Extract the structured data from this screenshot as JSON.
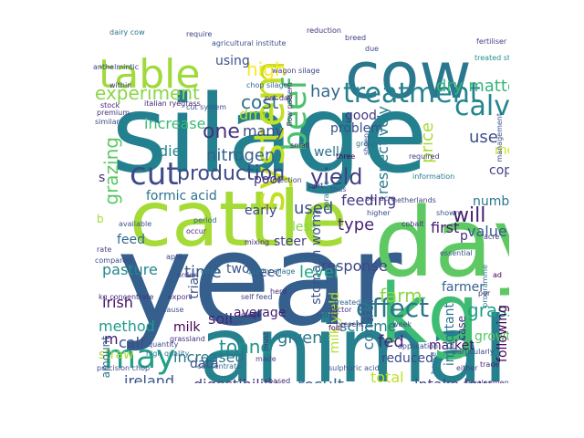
{
  "words": [
    {
      "id": "silage",
      "text": "silage",
      "color": "#23808e"
    },
    {
      "id": "year",
      "text": "year",
      "color": "#35608d"
    },
    {
      "id": "cattle",
      "text": "cattle",
      "color": "#a5db36"
    },
    {
      "id": "animal",
      "text": "animal",
      "color": "#26818e"
    },
    {
      "id": "day",
      "text": "day",
      "color": "#5ec962"
    },
    {
      "id": "kg",
      "text": "kg",
      "color": "#3fbc73"
    },
    {
      "id": "cow",
      "text": "cow",
      "color": "#2a788e"
    },
    {
      "id": "table",
      "text": "table",
      "color": "#9fda3a"
    },
    {
      "id": "system",
      "text": "system",
      "color": "#c2df23"
    },
    {
      "id": "beef",
      "text": "beef",
      "color": "#4ac16d"
    },
    {
      "id": "may",
      "text": "may",
      "color": "#1fa187"
    },
    {
      "id": "treatment",
      "text": "treatment",
      "color": "#26828e"
    },
    {
      "id": "experiment",
      "text": "experiment",
      "color": "#89d548"
    },
    {
      "id": "calves",
      "text": "calves",
      "color": "#25858e"
    },
    {
      "id": "dry_matter",
      "text": "dry matter",
      "color": "#34b679"
    },
    {
      "id": "effect",
      "text": "effect",
      "color": "#2b758e"
    },
    {
      "id": "cut",
      "text": "cut",
      "color": "#3e4a89"
    },
    {
      "id": "production",
      "text": "production",
      "color": "#3e4989"
    },
    {
      "id": "yield",
      "text": "yield",
      "color": "#424086"
    },
    {
      "id": "will",
      "text": "will",
      "color": "#481b6d"
    },
    {
      "id": "high",
      "text": "high",
      "color": "#fde725"
    },
    {
      "id": "cost",
      "text": "cost",
      "color": "#2e6e8e"
    },
    {
      "id": "grazing",
      "text": "grazing",
      "color": "#5ac864"
    },
    {
      "id": "one",
      "text": "one",
      "color": "#46327e"
    },
    {
      "id": "nitrogen",
      "text": "nitrogen",
      "color": "#33638d"
    },
    {
      "id": "increase",
      "text": "increase",
      "color": "#3aba76"
    },
    {
      "id": "diet",
      "text": "diet",
      "color": "#25838e"
    },
    {
      "id": "dmd",
      "text": "dmd",
      "color": "#b2dd2d"
    },
    {
      "id": "many",
      "text": "many",
      "color": "#3f4889"
    },
    {
      "id": "hay",
      "text": "hay",
      "color": "#31668e"
    },
    {
      "id": "good",
      "text": "good",
      "color": "#453781"
    },
    {
      "id": "problem",
      "text": "problem",
      "color": "#3b518b"
    },
    {
      "id": "well",
      "text": "well",
      "color": "#2d718e"
    },
    {
      "id": "use",
      "text": "use",
      "color": "#3c4f8a"
    },
    {
      "id": "month",
      "text": "month",
      "color": "#d0e11c"
    },
    {
      "id": "respectively",
      "text": "respectively",
      "color": "#287c8e"
    },
    {
      "id": "price",
      "text": "price",
      "color": "#a8db34"
    },
    {
      "id": "copper",
      "text": "copper",
      "color": "#414487"
    },
    {
      "id": "using",
      "text": "using",
      "color": "#3b528b"
    },
    {
      "id": "formic_acid",
      "text": "formic acid",
      "color": "#2c728e"
    },
    {
      "id": "used",
      "text": "used",
      "color": "#3b528b"
    },
    {
      "id": "feeding",
      "text": "feeding",
      "color": "#453882"
    },
    {
      "id": "type",
      "text": "type",
      "color": "#482475"
    },
    {
      "id": "number",
      "text": "number",
      "color": "#2a788e"
    },
    {
      "id": "first",
      "text": "first",
      "color": "#481a6c"
    },
    {
      "id": "value",
      "text": "value",
      "color": "#38598c"
    },
    {
      "id": "early",
      "text": "early",
      "color": "#404688"
    },
    {
      "id": "poor",
      "text": "poor",
      "color": "#46307e"
    },
    {
      "id": "less",
      "text": "less",
      "color": "#86d549"
    },
    {
      "id": "feed",
      "text": "feed",
      "color": "#30698e"
    },
    {
      "id": "steer",
      "text": "steer",
      "color": "#424186"
    },
    {
      "id": "stomach_worm",
      "text": "stomach worm",
      "color": "#3b518b"
    },
    {
      "id": "response",
      "text": "response",
      "color": "#404588"
    },
    {
      "id": "level",
      "text": "level",
      "color": "#22a785"
    },
    {
      "id": "pasture",
      "text": "pasture",
      "color": "#24878e"
    },
    {
      "id": "time",
      "text": "time",
      "color": "#38588c"
    },
    {
      "id": "two",
      "text": "two",
      "color": "#3b528b"
    },
    {
      "id": "eec",
      "text": "eec",
      "color": "#3d4d8a"
    },
    {
      "id": "farm",
      "text": "farm",
      "color": "#8bd646"
    },
    {
      "id": "farmer",
      "text": "farmer",
      "color": "#33638d"
    },
    {
      "id": "grass",
      "text": "grass",
      "color": "#1fa088"
    },
    {
      "id": "irish",
      "text": "irish",
      "color": "#471164"
    },
    {
      "id": "method",
      "text": "method",
      "color": "#1e9c89"
    },
    {
      "id": "trial",
      "text": "trial",
      "color": "#3a548c"
    },
    {
      "id": "soil",
      "text": "soil",
      "color": "#482374"
    },
    {
      "id": "tonne",
      "text": "tonne",
      "color": "#20928c"
    },
    {
      "id": "milk_yield",
      "text": "milk yield",
      "color": "#b8de29"
    },
    {
      "id": "scheme",
      "text": "scheme",
      "color": "#277f8e"
    },
    {
      "id": "fed",
      "text": "fed",
      "color": "#482878"
    },
    {
      "id": "growth",
      "text": "growth",
      "color": "#5cc863"
    },
    {
      "id": "calf",
      "text": "calf",
      "color": "#3e4c8a"
    },
    {
      "id": "average",
      "text": "average",
      "color": "#481f70"
    },
    {
      "id": "given",
      "text": "given",
      "color": "#2a788e"
    },
    {
      "id": "straw",
      "text": "straw",
      "color": "#a5db36"
    },
    {
      "id": "milk",
      "text": "milk",
      "color": "#440154"
    },
    {
      "id": "increased",
      "text": "increased",
      "color": "#2a768e"
    },
    {
      "id": "control",
      "text": "control",
      "color": "#2d708e"
    },
    {
      "id": "reduced",
      "text": "reduced",
      "color": "#3e4989"
    },
    {
      "id": "market",
      "text": "market",
      "color": "#471365"
    },
    {
      "id": "case",
      "text": "case",
      "color": "#46337f"
    },
    {
      "id": "important",
      "text": "important",
      "color": "#2d718e"
    },
    {
      "id": "following",
      "text": "following",
      "color": "#440154"
    },
    {
      "id": "amount",
      "text": "amount",
      "color": "#2e6e8e"
    },
    {
      "id": "data",
      "text": "data",
      "color": "#3b528b"
    },
    {
      "id": "ireland",
      "text": "ireland",
      "color": "#39568c"
    },
    {
      "id": "digestibility",
      "text": "digestibility",
      "color": "#443a83"
    },
    {
      "id": "result",
      "text": "result",
      "color": "#34618d"
    },
    {
      "id": "total",
      "text": "total",
      "color": "#c0df25"
    },
    {
      "id": "intake",
      "text": "intake",
      "color": "#423f85"
    },
    {
      "id": "low",
      "text": "low",
      "color": "#3e4a89"
    },
    {
      "id": "p",
      "text": "p",
      "color": "#472c7a"
    },
    {
      "id": "m",
      "text": "m",
      "color": "#481769"
    },
    {
      "id": "s",
      "text": "s",
      "color": "#472d7b"
    },
    {
      "id": "b",
      "text": "b",
      "color": "#a2da37"
    },
    {
      "id": "kg_concentrate",
      "text": "kg concentrate",
      "color": "#46307e"
    },
    {
      "id": "agricultural_institute",
      "text": "agricultural institute",
      "color": "#3b528b"
    },
    {
      "id": "reduction",
      "text": "reduction",
      "color": "#472c7a"
    },
    {
      "id": "dairy_cow",
      "text": "dairy cow",
      "color": "#2c728e"
    },
    {
      "id": "require",
      "text": "require",
      "color": "#404688"
    },
    {
      "id": "breed",
      "text": "breed",
      "color": "#424086"
    },
    {
      "id": "due",
      "text": "due",
      "color": "#3e4c8a"
    },
    {
      "id": "italian_ryegrass",
      "text": "italian ryegrass",
      "color": "#482576"
    },
    {
      "id": "anthelmintic",
      "text": "anthelmintic",
      "color": "#3e4989"
    },
    {
      "id": "wagon_silage",
      "text": "wagon silage",
      "color": "#414487"
    },
    {
      "id": "chop_silage",
      "text": "chop silage",
      "color": "#31668e"
    },
    {
      "id": "cut_system",
      "text": "cut system",
      "color": "#3b518b"
    },
    {
      "id": "per_day",
      "text": "per day",
      "color": "#472d7b"
    },
    {
      "id": "treated_straw",
      "text": "treated straw",
      "color": "#20928c"
    },
    {
      "id": "essential",
      "text": "essential",
      "color": "#3b528b"
    },
    {
      "id": "cobalt",
      "text": "cobalt",
      "color": "#46317e"
    },
    {
      "id": "netherlands",
      "text": "netherlands",
      "color": "#414487"
    },
    {
      "id": "per_acre",
      "text": "per acre",
      "color": "#433e85"
    },
    {
      "id": "higher",
      "text": "higher",
      "color": "#3e4989"
    },
    {
      "id": "information",
      "text": "information",
      "color": "#2a788e"
    },
    {
      "id": "required",
      "text": "required",
      "color": "#433d84"
    },
    {
      "id": "shown",
      "text": "shown",
      "color": "#3b528b"
    },
    {
      "id": "three",
      "text": "three",
      "color": "#440154"
    },
    {
      "id": "infection",
      "text": "infection",
      "color": "#3e4c8a"
    },
    {
      "id": "small",
      "text": "small",
      "color": "#482374"
    },
    {
      "id": "part",
      "text": "part",
      "color": "#46307e"
    },
    {
      "id": "thus",
      "text": "thus",
      "color": "#3b528b"
    },
    {
      "id": "parasite",
      "text": "parasite",
      "color": "#2c728e"
    },
    {
      "id": "factor",
      "text": "factor",
      "color": "#46317e"
    },
    {
      "id": "april",
      "text": "april",
      "color": "#404688"
    },
    {
      "id": "period",
      "text": "period",
      "color": "#31668e"
    },
    {
      "id": "occur",
      "text": "occur",
      "color": "#482475"
    },
    {
      "id": "available",
      "text": "available",
      "color": "#3b528b"
    },
    {
      "id": "rate",
      "text": "rate",
      "color": "#424086"
    },
    {
      "id": "compared",
      "text": "compared",
      "color": "#3e4989"
    },
    {
      "id": "order",
      "text": "order",
      "color": "#433d84"
    },
    {
      "id": "often",
      "text": "often",
      "color": "#2a788e"
    },
    {
      "id": "export",
      "text": "export",
      "color": "#46337f"
    },
    {
      "id": "herd",
      "text": "herd",
      "color": "#472c7a"
    },
    {
      "id": "self_feed",
      "text": "self feed",
      "color": "#414487"
    },
    {
      "id": "quality_silage",
      "text": "quality silage",
      "color": "#2c728e"
    },
    {
      "id": "cause",
      "text": "cause",
      "color": "#3b528b"
    },
    {
      "id": "stage",
      "text": "stage",
      "color": "#482576"
    },
    {
      "id": "lower",
      "text": "lower",
      "color": "#3e4c8a"
    },
    {
      "id": "grassland",
      "text": "grassland",
      "color": "#46307e"
    },
    {
      "id": "quantity",
      "text": "quantity",
      "color": "#404688"
    },
    {
      "id": "high_quality",
      "text": "high quality",
      "color": "#2a788e"
    },
    {
      "id": "must",
      "text": "must",
      "color": "#433e85"
    },
    {
      "id": "made",
      "text": "made",
      "color": "#424086"
    },
    {
      "id": "concentrate",
      "text": "concentrate",
      "color": "#31668e"
    },
    {
      "id": "based",
      "text": "based",
      "color": "#482374"
    },
    {
      "id": "sulphuric_acid",
      "text": "sulphuric acid",
      "color": "#3b528b"
    },
    {
      "id": "development",
      "text": "development",
      "color": "#46317e"
    },
    {
      "id": "trade",
      "text": "trade",
      "color": "#482475"
    },
    {
      "id": "particularly",
      "text": "particularly",
      "color": "#3e4989"
    },
    {
      "id": "either",
      "text": "either",
      "color": "#433d84"
    },
    {
      "id": "house",
      "text": "house",
      "color": "#2c728e"
    },
    {
      "id": "application",
      "text": "application",
      "color": "#404688"
    },
    {
      "id": "week",
      "text": "week",
      "color": "#3e4c8a"
    },
    {
      "id": "four",
      "text": "four",
      "color": "#440154"
    },
    {
      "id": "present",
      "text": "present",
      "color": "#472c7a"
    },
    {
      "id": "rather",
      "text": "rather",
      "color": "#3b528b"
    },
    {
      "id": "treated",
      "text": "treated",
      "color": "#31668e"
    },
    {
      "id": "premium",
      "text": "premium",
      "color": "#46337f"
    },
    {
      "id": "stock",
      "text": "stock",
      "color": "#482576"
    },
    {
      "id": "similar",
      "text": "similar",
      "color": "#3e4989"
    },
    {
      "id": "acre",
      "text": "acre",
      "color": "#424086"
    },
    {
      "id": "programme",
      "text": "programme",
      "color": "#2a788e"
    },
    {
      "id": "management",
      "text": "management",
      "color": "#3b528b"
    },
    {
      "id": "fertiliser",
      "text": "fertiliser",
      "color": "#433e85"
    },
    {
      "id": "within",
      "text": "within",
      "color": "#404688"
    },
    {
      "id": "flow_pattern",
      "text": "flow pattern",
      "color": "#46307e"
    },
    {
      "id": "mixing",
      "text": "mixing",
      "color": "#482374"
    },
    {
      "id": "precision_chop",
      "text": "precision chop",
      "color": "#3e4c8a"
    },
    {
      "id": "ad",
      "text": "ad",
      "color": "#440154"
    },
    {
      "id": "per",
      "text": "per",
      "color": "#472d7b"
    },
    {
      "id": "group",
      "text": "group",
      "color": "#2c728e"
    },
    {
      "id": "sheep",
      "text": "sheep",
      "color": "#3b528b"
    }
  ]
}
